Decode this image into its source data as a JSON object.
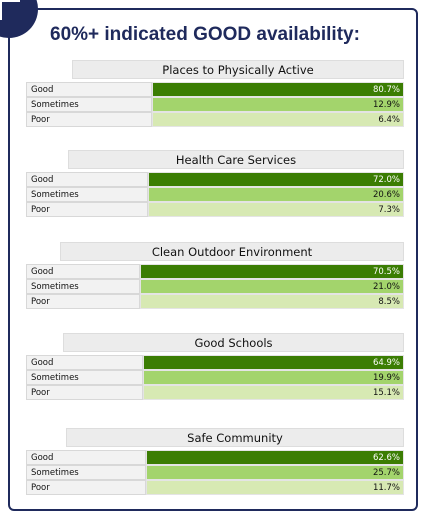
{
  "title": "60%+ indicated GOOD availability:",
  "tables": [
    {
      "title": "Places to Physically Active",
      "rows": [
        {
          "label": "Good",
          "value": "80.7%"
        },
        {
          "label": "Sometimes",
          "value": "12.9%"
        },
        {
          "label": "Poor",
          "value": "6.4%"
        }
      ]
    },
    {
      "title": "Health Care Services",
      "rows": [
        {
          "label": "Good",
          "value": "72.0%"
        },
        {
          "label": "Sometimes",
          "value": "20.6%"
        },
        {
          "label": "Poor",
          "value": "7.3%"
        }
      ]
    },
    {
      "title": "Clean Outdoor Environment",
      "rows": [
        {
          "label": "Good",
          "value": "70.5%"
        },
        {
          "label": "Sometimes",
          "value": "21.0%"
        },
        {
          "label": "Poor",
          "value": "8.5%"
        }
      ]
    },
    {
      "title": "Good Schools",
      "rows": [
        {
          "label": "Good",
          "value": "64.9%"
        },
        {
          "label": "Sometimes",
          "value": "19.9%"
        },
        {
          "label": "Poor",
          "value": "15.1%"
        }
      ]
    },
    {
      "title": "Safe Community",
      "rows": [
        {
          "label": "Good",
          "value": "62.6%"
        },
        {
          "label": "Sometimes",
          "value": "25.7%"
        },
        {
          "label": "Poor",
          "value": "11.7%"
        }
      ]
    }
  ]
}
